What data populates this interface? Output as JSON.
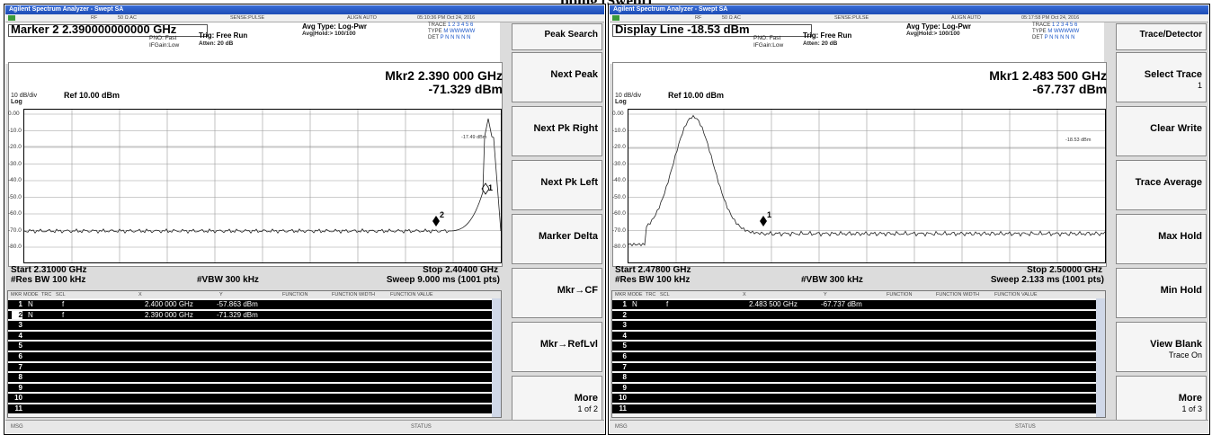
{
  "doc": {
    "title": "pping (Swept)"
  },
  "left": {
    "app_title": "Agilent Spectrum Analyzer - Swept SA",
    "status": {
      "rf": "RF",
      "ohm": "50 Ω  AC",
      "sense": "SENSE:PULSE",
      "align": "ALIGN AUTO",
      "datetime": "05:10:36 PM Oct 24, 2016"
    },
    "active_function": "Marker 2  2.390000000000 GHz",
    "pno": "PNO: Fast",
    "ifgain": "IFGain:Low",
    "trig": "Trig: Free Run",
    "atten": "Atten: 20 dB",
    "avg_type": "Avg Type: Log-Pwr",
    "avg_hold": "Avg|Hold:> 100/100",
    "trace": {
      "label": "TRACE",
      "nums": "1 2 3 4 5 6",
      "type_label": "TYPE",
      "type": "M WWWWW",
      "det_label": "DET",
      "det": "P N N N N N"
    },
    "marker_freq": "Mkr2 2.390 000 GHz",
    "marker_amp": "-71.329 dBm",
    "scale_div": "10 dB/div",
    "log": "Log",
    "ref": "Ref 10.00 dBm",
    "y_labels": [
      "0.00",
      "-10.0",
      "-20.0",
      "-30.0",
      "-40.0",
      "-50.0",
      "-60.0",
      "-70.0",
      "-80.0"
    ],
    "display_line_label": "-17.49 dBm",
    "marker1_tag": "1",
    "marker2_tag": "2",
    "start": "Start 2.31000 GHz",
    "stop": "Stop 2.40400 GHz",
    "rbw": "#Res BW  100 kHz",
    "vbw": "#VBW  300 kHz",
    "sweep": "Sweep  9.000 ms (1001 pts)",
    "table_headers": [
      "MKR",
      "MODE",
      "TRC",
      "SCL",
      "X",
      "Y",
      "FUNCTION",
      "FUNCTION WIDTH",
      "FUNCTION VALUE"
    ],
    "rows": [
      {
        "n": "1",
        "mode": "N",
        "scl": "f",
        "x": "2.400 000 GHz",
        "y": "-57.863 dBm"
      },
      {
        "n": "2",
        "mode": "N",
        "scl": "f",
        "x": "2.390 000 GHz",
        "y": "-71.329 dBm"
      },
      {
        "n": "3"
      },
      {
        "n": "4"
      },
      {
        "n": "5"
      },
      {
        "n": "6"
      },
      {
        "n": "7"
      },
      {
        "n": "8"
      },
      {
        "n": "9"
      },
      {
        "n": "10"
      },
      {
        "n": "11"
      }
    ],
    "msg": "MSG",
    "status_label": "STATUS",
    "softkeys": [
      {
        "label": "Peak Search",
        "sub": ""
      },
      {
        "label": "Next Peak",
        "sub": ""
      },
      {
        "label": "Next Pk Right",
        "sub": ""
      },
      {
        "label": "Next Pk Left",
        "sub": ""
      },
      {
        "label": "Marker Delta",
        "sub": ""
      },
      {
        "label": "Mkr→CF",
        "sub": ""
      },
      {
        "label": "Mkr→RefLvl",
        "sub": ""
      },
      {
        "label": "More",
        "sub": "1 of 2"
      }
    ]
  },
  "right": {
    "app_title": "Agilent Spectrum Analyzer - Swept SA",
    "status": {
      "rf": "RF",
      "ohm": "50 Ω  AC",
      "sense": "SENSE:PULSE",
      "align": "ALIGN AUTO",
      "datetime": "05:17:58 PM Oct 24, 2016"
    },
    "active_function": "Display Line -18.53 dBm",
    "pno": "PNO: Fast",
    "ifgain": "IFGain:Low",
    "trig": "Trig: Free Run",
    "atten": "Atten: 20 dB",
    "avg_type": "Avg Type: Log-Pwr",
    "avg_hold": "Avg|Hold:> 100/100",
    "trace": {
      "label": "TRACE",
      "nums": "1 2 3 4 5 6",
      "type_label": "TYPE",
      "type": "M WWWWW",
      "det_label": "DET",
      "det": "P N N N N N"
    },
    "marker_freq": "Mkr1 2.483 500 GHz",
    "marker_amp": "-67.737 dBm",
    "scale_div": "10 dB/div",
    "log": "Log",
    "ref": "Ref 10.00 dBm",
    "y_labels": [
      "0.00",
      "-10.0",
      "-20.0",
      "-30.0",
      "-40.0",
      "-50.0",
      "-60.0",
      "-70.0",
      "-80.0"
    ],
    "display_line_label": "-18.53 dBm",
    "marker1_tag": "1",
    "start": "Start 2.47800 GHz",
    "stop": "Stop 2.50000 GHz",
    "rbw": "#Res BW  100 kHz",
    "vbw": "#VBW  300 kHz",
    "sweep": "Sweep  2.133 ms (1001 pts)",
    "table_headers": [
      "MKR",
      "MODE",
      "TRC",
      "SCL",
      "X",
      "Y",
      "FUNCTION",
      "FUNCTION WIDTH",
      "FUNCTION VALUE"
    ],
    "rows": [
      {
        "n": "1",
        "mode": "N",
        "scl": "f",
        "x": "2.483 500 GHz",
        "y": "-67.737 dBm"
      },
      {
        "n": "2"
      },
      {
        "n": "3"
      },
      {
        "n": "4"
      },
      {
        "n": "5"
      },
      {
        "n": "6"
      },
      {
        "n": "7"
      },
      {
        "n": "8"
      },
      {
        "n": "9"
      },
      {
        "n": "10"
      },
      {
        "n": "11"
      }
    ],
    "msg": "MSG",
    "status_label": "STATUS",
    "softkeys": [
      {
        "label": "Trace/Detector",
        "sub": ""
      },
      {
        "label": "Select Trace",
        "sub": "1"
      },
      {
        "label": "Clear Write",
        "sub": ""
      },
      {
        "label": "Trace Average",
        "sub": ""
      },
      {
        "label": "Max Hold",
        "sub": ""
      },
      {
        "label": "Min Hold",
        "sub": ""
      },
      {
        "label": "View Blank",
        "sub": "Trace On"
      },
      {
        "label": "More",
        "sub": "1 of 3"
      }
    ]
  }
}
